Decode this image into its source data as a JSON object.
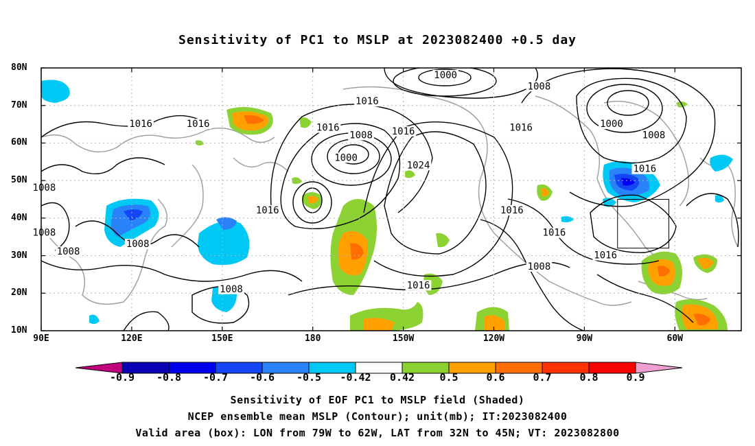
{
  "title": "Sensitivity of PC1 to MSLP at 2023082400 +0.5 day",
  "lat_labels": [
    "80N",
    "70N",
    "60N",
    "50N",
    "40N",
    "30N",
    "20N",
    "10N"
  ],
  "lat_values": [
    80,
    70,
    60,
    50,
    40,
    30,
    20,
    10
  ],
  "lon_labels": [
    "90E",
    "120E",
    "150E",
    "180",
    "150W",
    "120W",
    "90W",
    "60W"
  ],
  "lon_values": [
    90,
    120,
    150,
    180,
    210,
    240,
    270,
    300
  ],
  "extent": {
    "lon_min": 90,
    "lon_max": 322,
    "lat_min": 10,
    "lat_max": 80
  },
  "colorbar": {
    "labels": [
      "-0.9",
      "-0.8",
      "-0.7",
      "-0.6",
      "-0.5",
      "-0.42",
      "0.42",
      "0.5",
      "0.6",
      "0.7",
      "0.8",
      "0.9"
    ],
    "colors": [
      "#c0007c",
      "#0a00b4",
      "#0000f0",
      "#1446f5",
      "#2a82f8",
      "#00c8f5",
      "#ffffff",
      "#8cd232",
      "#ffa000",
      "#ff6e00",
      "#ff3200",
      "#ff0000",
      "#f0a0d0"
    ]
  },
  "contour_labels": [
    {
      "text": "1000",
      "lon": 191,
      "lat": 56
    },
    {
      "text": "1000",
      "lon": 224,
      "lat": 78
    },
    {
      "text": "1000",
      "lon": 279,
      "lat": 65
    },
    {
      "text": "1008",
      "lon": 196,
      "lat": 62
    },
    {
      "text": "1008",
      "lon": 255,
      "lat": 75
    },
    {
      "text": "1008",
      "lon": 293,
      "lat": 62
    },
    {
      "text": "1008",
      "lon": 91,
      "lat": 48
    },
    {
      "text": "1008",
      "lon": 91,
      "lat": 36
    },
    {
      "text": "1008",
      "lon": 99,
      "lat": 31
    },
    {
      "text": "1008",
      "lon": 122,
      "lat": 33
    },
    {
      "text": "1008",
      "lon": 153,
      "lat": 21
    },
    {
      "text": "1008",
      "lon": 255,
      "lat": 27
    },
    {
      "text": "1016",
      "lon": 123,
      "lat": 65
    },
    {
      "text": "1016",
      "lon": 142,
      "lat": 65
    },
    {
      "text": "1016",
      "lon": 198,
      "lat": 71
    },
    {
      "text": "1016",
      "lon": 185,
      "lat": 64
    },
    {
      "text": "1016",
      "lon": 210,
      "lat": 63
    },
    {
      "text": "1016",
      "lon": 249,
      "lat": 64
    },
    {
      "text": "1016",
      "lon": 290,
      "lat": 53
    },
    {
      "text": "1016",
      "lon": 165,
      "lat": 42
    },
    {
      "text": "1016",
      "lon": 246,
      "lat": 42
    },
    {
      "text": "1016",
      "lon": 260,
      "lat": 36
    },
    {
      "text": "1016",
      "lon": 277,
      "lat": 30
    },
    {
      "text": "1016",
      "lon": 215,
      "lat": 22
    },
    {
      "text": "1024",
      "lon": 215,
      "lat": 54
    }
  ],
  "valid_box": {
    "lon_min": 281,
    "lon_max": 298,
    "lat_min": 32,
    "lat_max": 45
  },
  "captions": [
    "Sensitivity of EOF PC1 to MSLP field (Shaded)",
    "NCEP ensemble mean MSLP (Contour); unit(mb); IT:2023082400",
    "Valid area (box): LON from 79W to 62W, LAT from 32N to 45N; VT: 2023082800"
  ]
}
